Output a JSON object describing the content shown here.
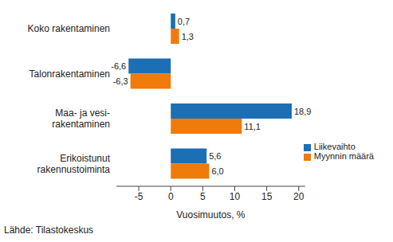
{
  "chart_data": {
    "type": "bar",
    "orientation": "horizontal",
    "categories": [
      "Koko rakentaminen",
      "Talonrakentaminen",
      "Maa- ja vesi-\nrakentaminen",
      "Erikoistunut\nrakennustoiminta"
    ],
    "series": [
      {
        "name": "Liikevaihto",
        "color": "#1c6eb5",
        "values": [
          0.7,
          -6.6,
          18.9,
          5.6
        ],
        "value_labels": [
          "0,7",
          "-6,6",
          "18,9",
          "5,6"
        ]
      },
      {
        "name": "Myynnin määrä",
        "color": "#f07a0a",
        "values": [
          1.3,
          -6.3,
          11.1,
          6.0
        ],
        "value_labels": [
          "1,3",
          "-6,3",
          "11,1",
          "6,0"
        ]
      }
    ],
    "xlabel": "Vuosimuutos, %",
    "source": "Lähde: Tilastokeskus",
    "xlim": [
      -8.5,
      21
    ],
    "xticks": [
      -5,
      0,
      5,
      10,
      15,
      20
    ],
    "grid": false,
    "legend": "lower right",
    "data_labels": true
  }
}
